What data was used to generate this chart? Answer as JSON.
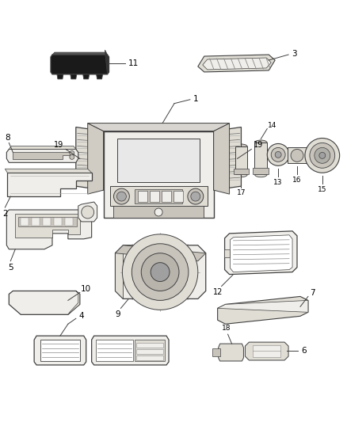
{
  "bg_color": "#ffffff",
  "lc": "#404040",
  "fc_light": "#f0eeea",
  "fc_mid": "#e0ddd5",
  "fc_dark": "#c8c4bc",
  "fc_black": "#1a1a1a"
}
